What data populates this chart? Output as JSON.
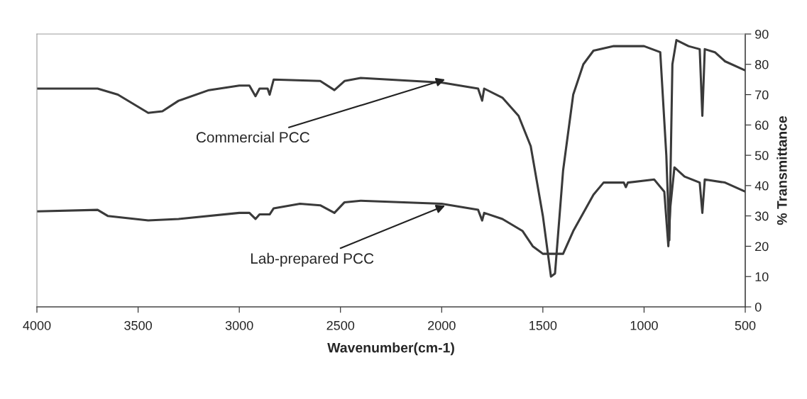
{
  "chart_data": {
    "type": "line",
    "xlabel": "Wavenumber(cm-1)",
    "ylabel": "% Transmittance",
    "xlim": [
      4000,
      500
    ],
    "xticks": [
      4000,
      3500,
      3000,
      2500,
      2000,
      1500,
      1000,
      500
    ],
    "ylim": [
      0,
      90
    ],
    "yticks": [
      0,
      10,
      20,
      30,
      40,
      50,
      60,
      70,
      80,
      90
    ],
    "grid": false,
    "legend": false,
    "series": [
      {
        "color": "#3a3a3a",
        "x": [
          4000,
          3700,
          3600,
          3450,
          3380,
          3300,
          3150,
          3000,
          2950,
          2920,
          2900,
          2860,
          2850,
          2830,
          2600,
          2530,
          2480,
          2400,
          2000,
          1820,
          1800,
          1790,
          1700,
          1620,
          1560,
          1500,
          1460,
          1440,
          1400,
          1350,
          1300,
          1250,
          1150,
          1000,
          920,
          890,
          875,
          860,
          840,
          780,
          725,
          712,
          700,
          650,
          600,
          500
        ],
        "values": [
          72,
          72,
          70,
          64,
          64.5,
          68,
          71.5,
          73,
          73,
          69.5,
          72,
          72,
          70,
          75,
          74.5,
          71.5,
          74.5,
          75.5,
          74,
          72,
          68,
          72,
          69,
          63,
          53,
          30,
          10,
          11,
          45,
          70,
          80,
          84.5,
          86,
          86,
          84,
          50,
          22,
          80,
          88,
          86,
          85,
          63,
          85,
          84,
          81,
          78
        ]
      },
      {
        "color": "#3a3a3a",
        "x": [
          4000,
          3700,
          3650,
          3450,
          3300,
          3000,
          2950,
          2920,
          2900,
          2850,
          2830,
          2700,
          2600,
          2530,
          2480,
          2400,
          2000,
          1820,
          1800,
          1790,
          1700,
          1600,
          1550,
          1500,
          1400,
          1350,
          1250,
          1200,
          1100,
          1090,
          1080,
          950,
          900,
          880,
          870,
          850,
          800,
          725,
          712,
          700,
          600,
          500
        ],
        "values": [
          31.5,
          32,
          30,
          28.5,
          29,
          31,
          31,
          29,
          30.5,
          30.5,
          32.5,
          34,
          33.5,
          31,
          34.5,
          35,
          34,
          32,
          28.5,
          31,
          29,
          25,
          20,
          17.5,
          17.5,
          25,
          37,
          41,
          41,
          39.5,
          41,
          42,
          38,
          20,
          33,
          46,
          43,
          41,
          31,
          42,
          41,
          38
        ]
      }
    ],
    "annotations": [
      {
        "text": "Commercial PCC",
        "x": 1983,
        "y": 75
      },
      {
        "text": "Lab-prepared PCC",
        "x": 1983,
        "y": 33.4
      }
    ]
  }
}
